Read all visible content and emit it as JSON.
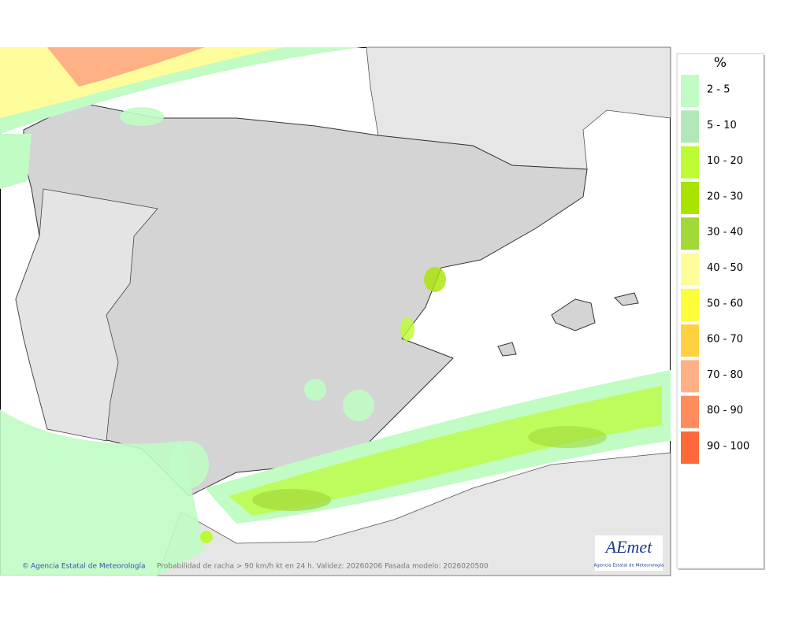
{
  "legend": {
    "title": "%",
    "items": [
      {
        "label": "2 - 5",
        "color": "#c0fcc4"
      },
      {
        "label": "5 - 10",
        "color": "#b2e8b8"
      },
      {
        "label": "10 - 20",
        "color": "#bdfc33"
      },
      {
        "label": "20 - 30",
        "color": "#a8e400"
      },
      {
        "label": "30 - 40",
        "color": "#a2d838"
      },
      {
        "label": "40 - 50",
        "color": "#fffc9c"
      },
      {
        "label": "50 - 60",
        "color": "#fffc3c"
      },
      {
        "label": "60 - 70",
        "color": "#ffd040"
      },
      {
        "label": "70 - 80",
        "color": "#ffb084"
      },
      {
        "label": "80 - 90",
        "color": "#ff8c5c"
      },
      {
        "label": "90 - 100",
        "color": "#ff6838"
      }
    ]
  },
  "footer": {
    "credit": "Agencia Estatal de Meteorología",
    "caption": "Probabilidad de racha > 90 km/h kt en 24 h. Validez: 20260206 Pasada modelo: 2026020500"
  },
  "logo": {
    "name": "AEmet",
    "subtitle": "Agencia Estatal de Meteorología"
  }
}
